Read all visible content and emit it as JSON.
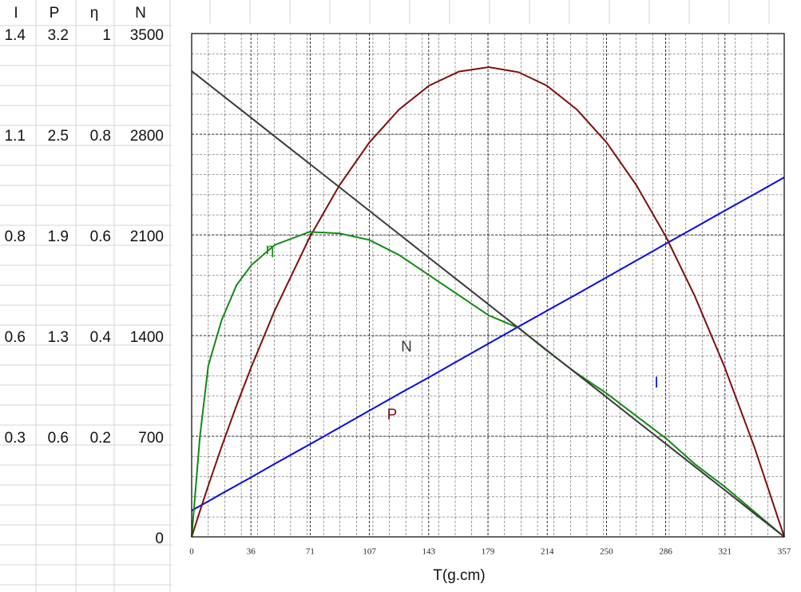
{
  "chart_data": {
    "type": "line",
    "x_title": "T(g.cm)",
    "xlim": [
      0,
      357
    ],
    "xticks": [
      0,
      {
        "value": 35.7,
        "label": "36"
      },
      {
        "value": 71.4,
        "label": "71"
      },
      {
        "value": 107.1,
        "label": "107"
      },
      {
        "value": 142.8,
        "label": "143"
      },
      {
        "value": 178.5,
        "label": "179"
      },
      {
        "value": 214.2,
        "label": "214"
      },
      {
        "value": 249.9,
        "label": "250"
      },
      {
        "value": 285.6,
        "label": "286"
      },
      {
        "value": 321.3,
        "label": "321"
      },
      357
    ],
    "y_axes": [
      {
        "title": "I",
        "ylim": [
          0,
          1.4
        ],
        "yticks": [
          {
            "value": 0.28,
            "label": "0.3"
          },
          {
            "value": 0.56,
            "label": "0.6"
          },
          {
            "value": 0.84,
            "label": "0.8"
          },
          {
            "value": 1.12,
            "label": "1.1"
          },
          1.4
        ]
      },
      {
        "title": "P",
        "ylim": [
          0,
          3.15
        ],
        "yticks": [
          {
            "value": 0.63,
            "label": "0.6"
          },
          {
            "value": 1.26,
            "label": "1.3"
          },
          {
            "value": 1.89,
            "label": "1.9"
          },
          {
            "value": 2.52,
            "label": "2.5"
          },
          {
            "value": 3.15,
            "label": "3.2"
          }
        ]
      },
      {
        "title": "η",
        "ylim": [
          0,
          1
        ],
        "yticks": [
          0.2,
          0.4,
          0.6,
          0.8,
          1
        ]
      },
      {
        "title": "N",
        "ylim": [
          0,
          3500
        ],
        "yticks": [
          0,
          700,
          1400,
          2100,
          2800,
          3500
        ]
      }
    ],
    "grid": true,
    "x": [
      0,
      5,
      10,
      18,
      27,
      36,
      50,
      71,
      89,
      107,
      125,
      143,
      161,
      179,
      197,
      214,
      232,
      250,
      268,
      286,
      303,
      321,
      339,
      357
    ],
    "series": [
      {
        "name": "I",
        "axis": 0,
        "color": "#0a0ae6",
        "values": [
          0.073,
          0.086,
          0.099,
          0.12,
          0.143,
          0.166,
          0.203,
          0.257,
          0.304,
          0.351,
          0.398,
          0.444,
          0.491,
          0.538,
          0.585,
          0.629,
          0.675,
          0.722,
          0.769,
          0.816,
          0.86,
          0.907,
          0.953,
          1.0
        ]
      },
      {
        "name": "P",
        "axis": 1,
        "color": "#7f0f0f",
        "values": [
          0,
          0.162,
          0.32,
          0.563,
          0.822,
          1.065,
          1.416,
          1.873,
          2.2,
          2.468,
          2.675,
          2.824,
          2.912,
          2.94,
          2.908,
          2.824,
          2.675,
          2.468,
          2.2,
          1.873,
          1.51,
          1.065,
          0.563,
          0
        ]
      },
      {
        "name": "η",
        "axis": 2,
        "color": "#138a13",
        "values": [
          0,
          0.2,
          0.34,
          0.43,
          0.5,
          0.54,
          0.58,
          0.606,
          0.603,
          0.59,
          0.56,
          0.52,
          0.48,
          0.44,
          0.415,
          0.37,
          0.325,
          0.285,
          0.24,
          0.195,
          0.145,
          0.1,
          0.05,
          0
        ]
      },
      {
        "name": "N",
        "axis": 3,
        "color": "#3a3a3a",
        "values": [
          3239,
          3194,
          3148,
          3076,
          2994,
          2913,
          2785,
          2595,
          2432,
          2268,
          2105,
          1941,
          1778,
          1615,
          1452,
          1298,
          1134,
          971,
          807,
          644,
          490,
          327,
          163,
          0
        ]
      }
    ]
  }
}
